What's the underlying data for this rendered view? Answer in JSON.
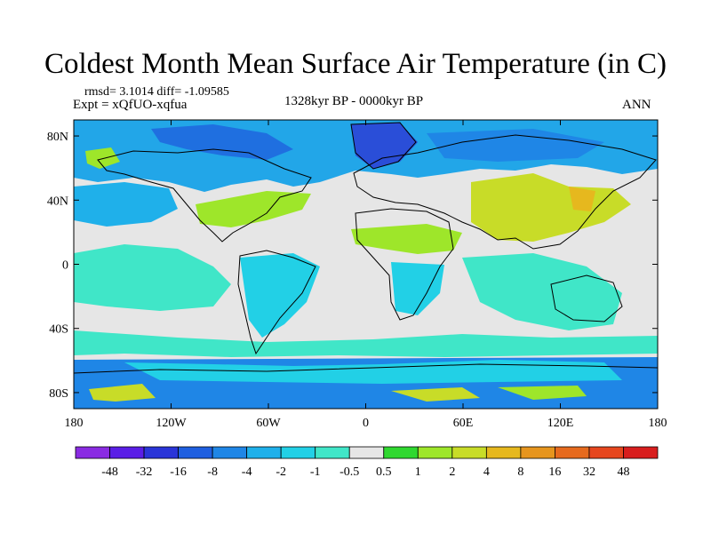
{
  "title": "Coldest Month Mean Surface Air Temperature (in C)",
  "stats_line": "rmsd= 3.1014  diff= -1.09585",
  "experiment_line": "Expt = xQfUO-xqfua",
  "period": "1328kyr BP - 0000kyr BP",
  "season": "ANN",
  "map": {
    "projection": "cylindrical equidistant",
    "lon_range": [
      -180,
      180
    ],
    "lat_range": [
      -90,
      90
    ],
    "background_color": "#e6e6e6",
    "lat_ticks": [
      {
        "value": 80,
        "label": "80N"
      },
      {
        "value": 40,
        "label": "40N"
      },
      {
        "value": 0,
        "label": "0"
      },
      {
        "value": -40,
        "label": "40S"
      },
      {
        "value": -80,
        "label": "80S"
      }
    ],
    "lon_ticks": [
      {
        "value": -180,
        "label": "180"
      },
      {
        "value": -120,
        "label": "120W"
      },
      {
        "value": -60,
        "label": "60W"
      },
      {
        "value": 0,
        "label": "0"
      },
      {
        "value": 60,
        "label": "60E"
      },
      {
        "value": 120,
        "label": "120E"
      },
      {
        "value": 180,
        "label": "180"
      }
    ]
  },
  "colorbar": {
    "labels": [
      "-48",
      "-32",
      "-16",
      "-8",
      "-4",
      "-2",
      "-1",
      "-0.5",
      "0.5",
      "1",
      "2",
      "4",
      "8",
      "16",
      "32",
      "48"
    ],
    "colors": [
      "#8a2be2",
      "#5a1ee6",
      "#2a35d8",
      "#1f5fe0",
      "#1f86e6",
      "#1fb0ea",
      "#22d0e6",
      "#40e6c8",
      "#e6e6e6",
      "#30d830",
      "#9ee62a",
      "#c8dc28",
      "#e6b81e",
      "#e6951e",
      "#e66a1e",
      "#e6461e",
      "#d81e1e"
    ]
  }
}
